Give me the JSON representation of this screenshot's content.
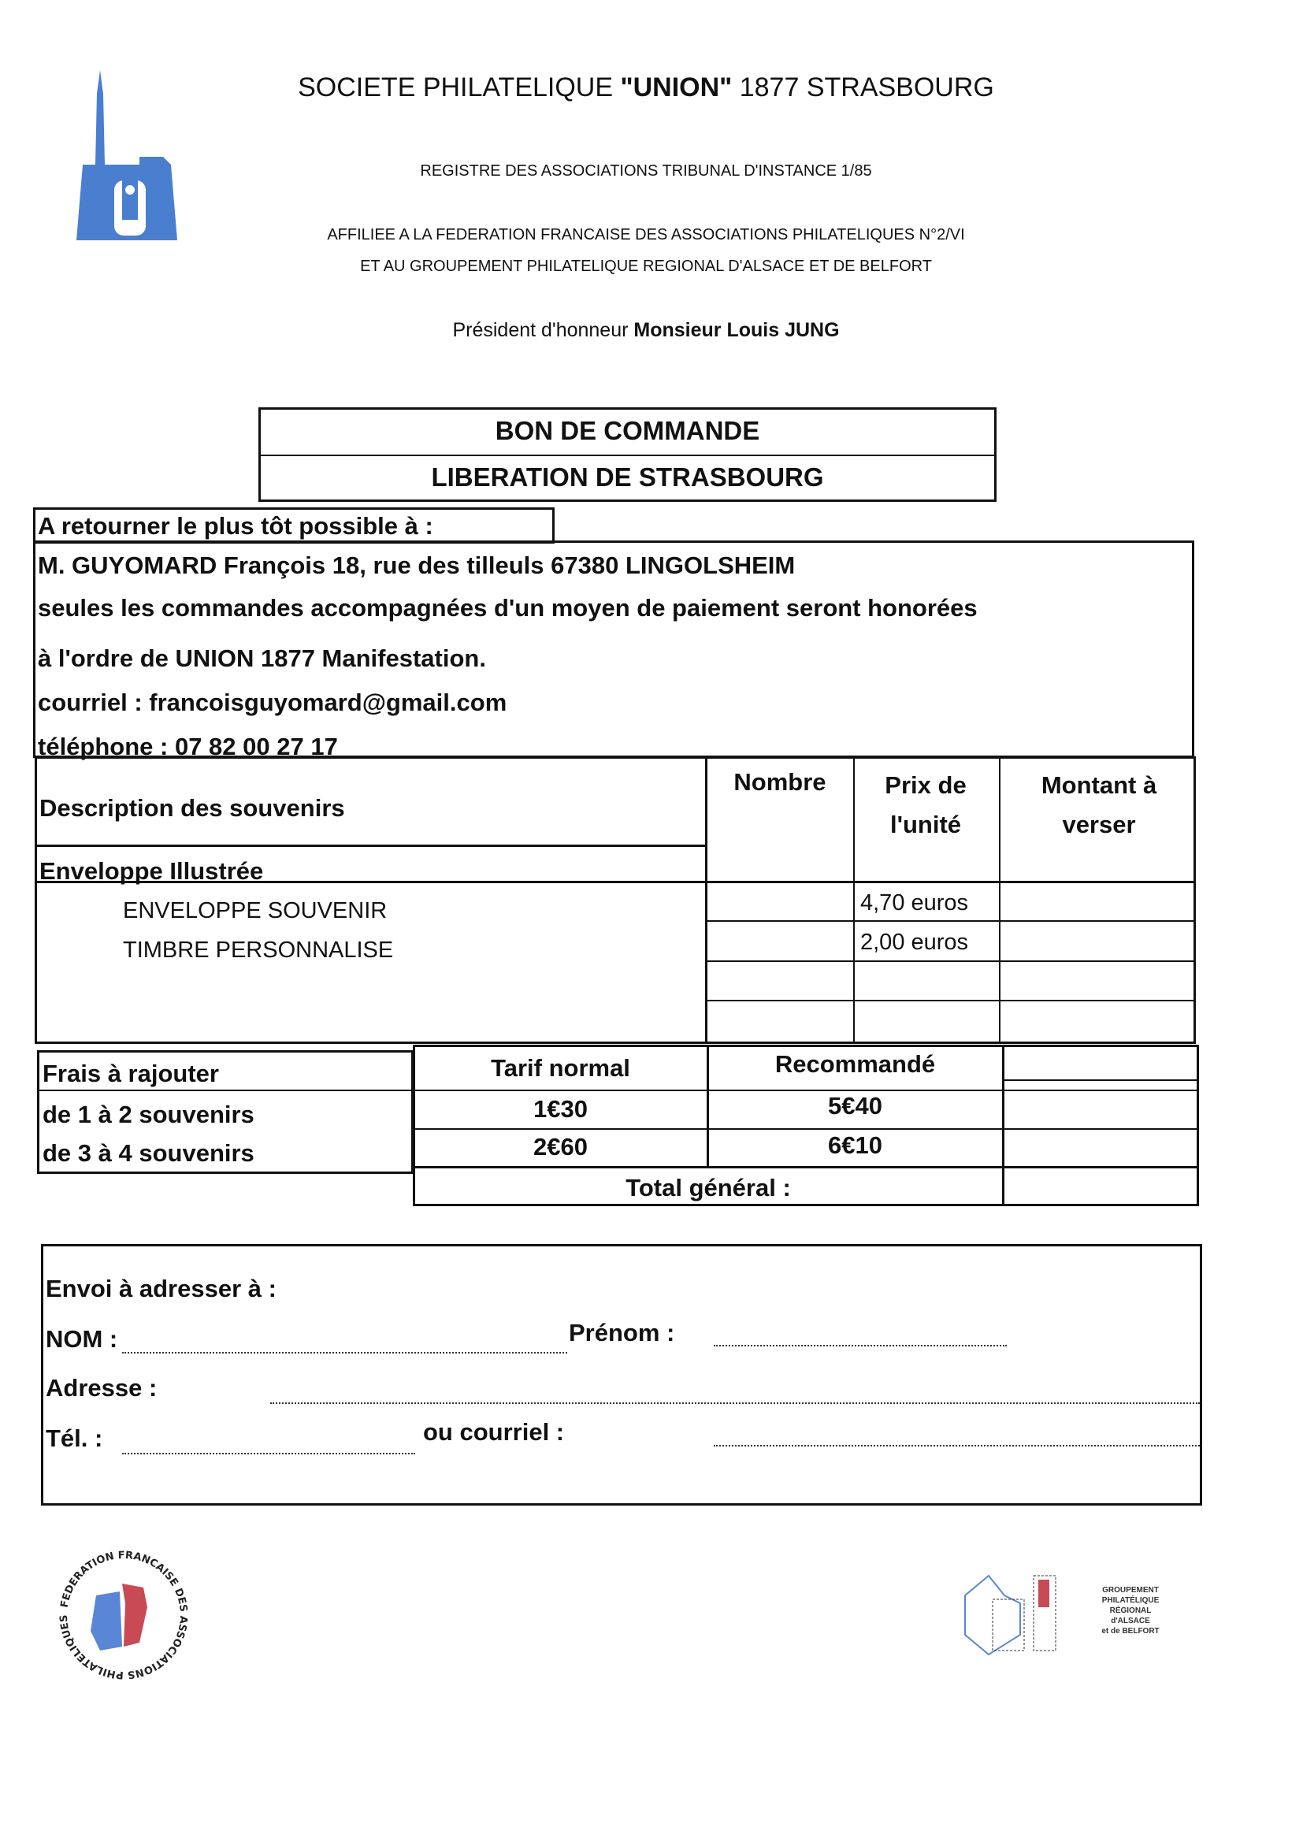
{
  "header": {
    "logo_letter": "U",
    "title_pre": "SOCIETE PHILATELIQUE ",
    "title_bold": "\"UNION\"",
    "title_post": " 1877 STRASBOURG",
    "registre": "REGISTRE DES ASSOCIATIONS TRIBUNAL D'INSTANCE 1/85",
    "affiliee": "AFFILIEE A LA FEDERATION FRANCAISE DES ASSOCIATIONS PHILATELIQUES N°2/VI",
    "groupement": "ET AU GROUPEMENT PHILATELIQUE REGIONAL D'ALSACE ET DE BELFORT",
    "president_label": "Président d'honneur ",
    "president_name": "Monsieur Louis JUNG"
  },
  "form": {
    "title": "BON DE COMMANDE",
    "subtitle": "LIBERATION DE STRASBOURG",
    "return_label": "A retourner le plus tôt possible à :",
    "address_lines": [
      "M. GUYOMARD François 18, rue des tilleuls 67380 LINGOLSHEIM",
      "seules les commandes accompagnées d'un moyen de paiement seront honorées",
      "à l'ordre de UNION 1877 Manifestation.",
      "courriel : francoisguyomard@gmail.com",
      "téléphone :  07 82 00 27 17"
    ]
  },
  "table": {
    "headers": {
      "description": "Description des souvenirs",
      "nombre": "Nombre",
      "prix": "Prix de l'unité",
      "montant": "Montant à verser"
    },
    "section": "Enveloppe Illustrée",
    "items": [
      {
        "name": "ENVELOPPE SOUVENIR",
        "price": "4,70 euros"
      },
      {
        "name": "TIMBRE PERSONNALISE",
        "price": "2,00 euros"
      }
    ]
  },
  "fees": {
    "label": "Frais à rajouter",
    "col_normal": "Tarif normal",
    "col_reco": "Recommandé",
    "rows": [
      {
        "label": "de 1 à 2 souvenirs",
        "normal": "1€30",
        "reco": "5€40"
      },
      {
        "label": "de 3 à 4 souvenirs",
        "normal": "2€60",
        "reco": "6€10"
      }
    ],
    "total": "Total général :"
  },
  "shipping": {
    "title": "Envoi à adresser à :",
    "nom": "NOM :",
    "prenom": "Prénom :",
    "adresse": "Adresse :",
    "tel": "Tél. :",
    "courriel": "ou courriel :"
  },
  "footer": {
    "ffap_text": "FEDERATION FRANCAISE DES ASSOCIATIONS PHILATELIQUES",
    "gpra_lines": [
      "GROUPEMENT",
      "PHILATÉLIQUE",
      "RÉGIONAL",
      "d'ALSACE",
      "et de BELFORT"
    ]
  },
  "colors": {
    "logo_blue": "#4a7fd0",
    "logo_red": "#c84a55"
  }
}
